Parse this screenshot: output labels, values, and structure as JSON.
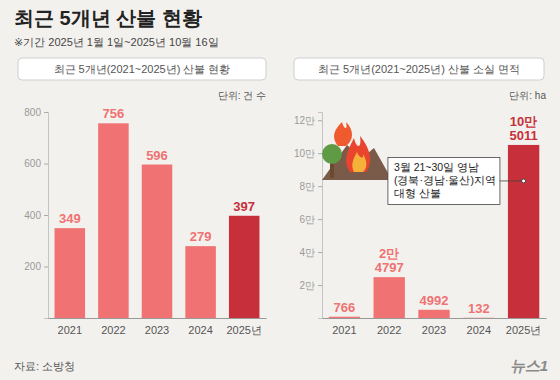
{
  "title": "최근 5개년 산불 현황",
  "note": "※기간 2025년 1월 1일~2025년 10월 16일",
  "source": "자료: 소방청",
  "logo": "뉴스1",
  "chart_data": [
    {
      "type": "bar",
      "title": "최근 5개년(2021~2025년) 산불 현황",
      "y_label": "단위: 건 수",
      "categories": [
        "2021",
        "2022",
        "2023",
        "2024",
        "2025년"
      ],
      "values": [
        349,
        756,
        596,
        279,
        397
      ],
      "colors": [
        "#f07272",
        "#f07272",
        "#f07272",
        "#f07272",
        "#c7303a"
      ],
      "ylim": [
        0,
        800
      ],
      "yticks": [
        200,
        400,
        600,
        800
      ],
      "data_labels": true,
      "grid": false
    },
    {
      "type": "bar",
      "title": "최근 5개년(2021~2025년) 산불 소실 면적",
      "y_label": "단위: ha",
      "categories": [
        "2021",
        "2022",
        "2023",
        "2024",
        "2025년"
      ],
      "values": [
        766,
        24797,
        4992,
        132,
        105011
      ],
      "value_labels": [
        "766",
        "2만 4797",
        "4992",
        "132",
        "10만 5011"
      ],
      "colors": [
        "#f07272",
        "#f07272",
        "#f07272",
        "#f07272",
        "#c7303a"
      ],
      "ylim": [
        0,
        125000
      ],
      "yticks": [
        {
          "value": 20000,
          "label": "2만"
        },
        {
          "value": 40000,
          "label": "4만"
        },
        {
          "value": 60000,
          "label": "6만"
        },
        {
          "value": 80000,
          "label": "8만"
        },
        {
          "value": 100000,
          "label": "10만"
        },
        {
          "value": 120000,
          "label": "12만"
        }
      ],
      "data_labels": true,
      "grid": false,
      "annotations": [
        {
          "x": "2025년",
          "text": [
            "3월 21~30일 영남",
            "(경북·경남·울산)지역",
            "대형 산불"
          ]
        }
      ]
    }
  ]
}
